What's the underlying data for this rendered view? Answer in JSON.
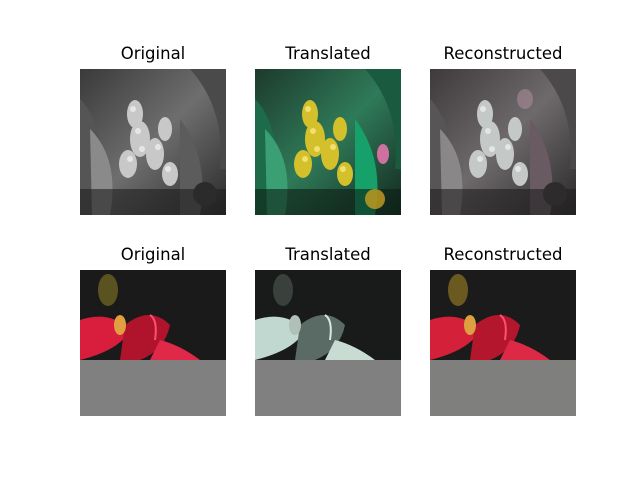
{
  "figure": {
    "rows": [
      {
        "panels": [
          {
            "title": "Original",
            "image": "grayscale-flower-spikes"
          },
          {
            "title": "Translated",
            "image": "colorized-yellow-green-flower-spikes"
          },
          {
            "title": "Reconstructed",
            "image": "grayscale-flower-spikes-reconstructed"
          }
        ]
      },
      {
        "panels": [
          {
            "title": "Original",
            "image": "red-lily-on-black-with-gray-padding"
          },
          {
            "title": "Translated",
            "image": "desaturated-lily-on-black-with-gray-padding"
          },
          {
            "title": "Reconstructed",
            "image": "red-lily-reconstructed-with-gray-padding"
          }
        ]
      }
    ],
    "colors": {
      "background": "#ffffff",
      "padding_gray": "#808080",
      "lily_red": "#d81e3c",
      "spike_yellow": "#d4c02a",
      "leaf_green": "#1e8a5a"
    }
  }
}
